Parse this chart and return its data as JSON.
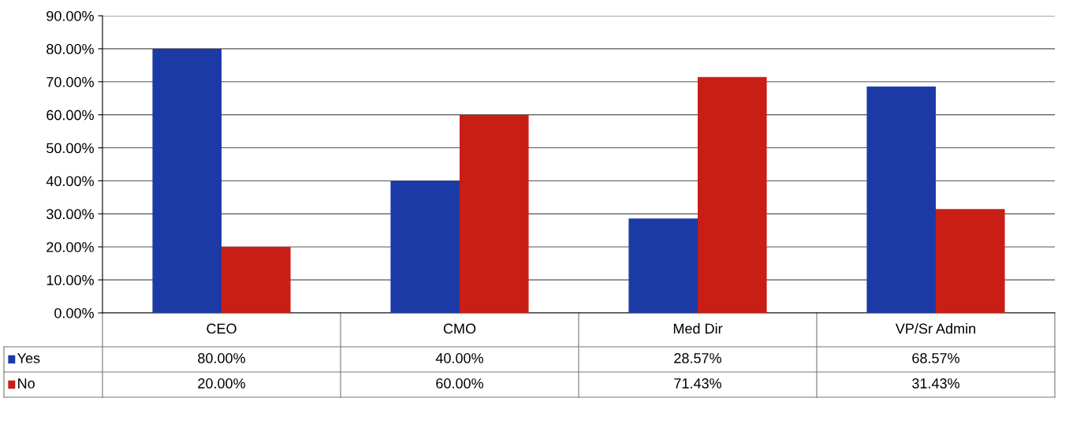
{
  "chart_data": {
    "type": "bar",
    "categories": [
      "CEO",
      "CMO",
      "Med Dir",
      "VP/Sr Admin"
    ],
    "series": [
      {
        "name": "Yes",
        "color": "#1c3aa6",
        "values": [
          80,
          40,
          28.57,
          68.57
        ],
        "value_labels": [
          "80.00%",
          "40.00%",
          "28.57%",
          "68.57%"
        ]
      },
      {
        "name": "No",
        "color": "#c81e16",
        "values": [
          20,
          60,
          71.43,
          31.43
        ],
        "value_labels": [
          "20.00%",
          "60.00%",
          "71.43%",
          "31.43%"
        ]
      }
    ],
    "ylim": [
      0,
      90
    ],
    "yticks": [
      {
        "value": 0,
        "label": "0.00%"
      },
      {
        "value": 10,
        "label": "10.00%"
      },
      {
        "value": 20,
        "label": "20.00%"
      },
      {
        "value": 30,
        "label": "30.00%"
      },
      {
        "value": 40,
        "label": "40.00%"
      },
      {
        "value": 50,
        "label": "50.00%"
      },
      {
        "value": 60,
        "label": "60.00%"
      },
      {
        "value": 70,
        "label": "70.00%"
      },
      {
        "value": 80,
        "label": "80.00%"
      },
      {
        "value": 90,
        "label": "90.00%"
      }
    ],
    "grid": "y",
    "legend": "bottom"
  }
}
